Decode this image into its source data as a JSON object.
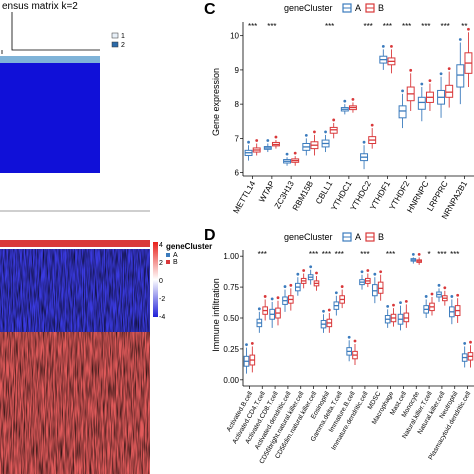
{
  "panel_c": {
    "letter": "C",
    "legend_title": "geneCluster",
    "legend_items": [
      "A",
      "B"
    ],
    "ylabel": "Gene expression",
    "yticks": [
      "6",
      "7",
      "8",
      "9",
      "10"
    ],
    "sig": [
      "***",
      "***",
      "",
      "",
      "***",
      "",
      "***",
      "***",
      "***",
      "***",
      "***",
      "**"
    ]
  },
  "panel_d": {
    "letter": "D",
    "legend_title": "geneCluster",
    "legend_items": [
      "A",
      "B"
    ],
    "ylabel": "Immune infiltration",
    "yticks": [
      "0.00",
      "0.25",
      "0.50",
      "0.75",
      "1.00"
    ],
    "sig": [
      "",
      "***",
      "",
      "",
      "",
      "***",
      "***",
      "***",
      "",
      "***",
      "",
      "***",
      "",
      "",
      "*",
      "***",
      "***",
      ""
    ]
  },
  "panel_top_left": {
    "title_fragment": "ensus matrix k=2",
    "legend_items": [
      "1",
      "2"
    ]
  },
  "panel_heatmap": {
    "scale_ticks": [
      "4",
      "2",
      "0",
      "-2",
      "-4"
    ],
    "legend_title": "geneCluster",
    "legend_items": [
      "A",
      "B"
    ]
  },
  "colors": {
    "cluster_a": "#3b7bbd",
    "cluster_b": "#d9383a",
    "consensus_blue": "#1010d8"
  },
  "chart_data": [
    {
      "type": "box",
      "panel": "C",
      "ylabel": "Gene expression",
      "ylim": [
        5.9,
        10.4
      ],
      "categories": [
        "METTL14",
        "WTAP",
        "ZC3H13",
        "RBM15B",
        "CBLL1",
        "YTHDC1",
        "YTHDC2",
        "YTHDF1",
        "YTHDF2",
        "HNRNPC",
        "LRPPRC",
        "NRNPA2B1"
      ],
      "series": [
        {
          "name": "A",
          "values": [
            [
              6.35,
              6.5,
              6.58,
              6.65,
              6.8
            ],
            [
              6.6,
              6.68,
              6.72,
              6.76,
              6.85
            ],
            [
              6.2,
              6.28,
              6.33,
              6.38,
              6.45
            ],
            [
              6.5,
              6.65,
              6.75,
              6.85,
              7.0
            ],
            [
              6.6,
              6.75,
              6.85,
              6.95,
              7.1
            ],
            [
              7.7,
              7.8,
              7.85,
              7.9,
              8.0
            ],
            [
              6.1,
              6.35,
              6.45,
              6.55,
              6.8
            ],
            [
              9.0,
              9.2,
              9.3,
              9.4,
              9.6
            ],
            [
              7.3,
              7.6,
              7.8,
              7.95,
              8.3
            ],
            [
              7.5,
              7.85,
              8.05,
              8.2,
              8.5
            ],
            [
              7.6,
              8.0,
              8.2,
              8.4,
              8.8
            ],
            [
              8.0,
              8.5,
              8.85,
              9.15,
              9.8
            ]
          ]
        },
        {
          "name": "B",
          "values": [
            [
              6.5,
              6.6,
              6.66,
              6.72,
              6.85
            ],
            [
              6.7,
              6.78,
              6.82,
              6.88,
              6.95
            ],
            [
              6.2,
              6.3,
              6.35,
              6.4,
              6.48
            ],
            [
              6.5,
              6.7,
              6.8,
              6.9,
              7.1
            ],
            [
              7.0,
              7.15,
              7.25,
              7.32,
              7.45
            ],
            [
              7.75,
              7.84,
              7.9,
              7.95,
              8.05
            ],
            [
              6.7,
              6.85,
              6.95,
              7.05,
              7.3
            ],
            [
              8.9,
              9.15,
              9.25,
              9.35,
              9.6
            ],
            [
              7.8,
              8.1,
              8.3,
              8.5,
              8.9
            ],
            [
              7.8,
              8.05,
              8.2,
              8.35,
              8.6
            ],
            [
              7.9,
              8.2,
              8.35,
              8.55,
              8.95
            ],
            [
              8.5,
              8.9,
              9.2,
              9.5,
              10.1
            ]
          ]
        }
      ]
    },
    {
      "type": "box",
      "panel": "D",
      "ylabel": "Immune infiltration",
      "ylim": [
        -0.05,
        1.05
      ],
      "categories": [
        "Activated.B.cell",
        "Activated.CD4.T.cell",
        "Activated.CD8.T.cell",
        "Activated.dendritic.cell",
        "CD56bright.natural.killer.cell",
        "CD56dim.natural.killer.cell",
        "Eosinophil",
        "Gamma.delta.T.cell",
        "Immature.B.cell",
        "Immature.dendritic.cell",
        "MDSC",
        "Macrophage",
        "Mast.cell",
        "Monocyte",
        "Natural.killer.T.cell",
        "Natural.killer.cell",
        "Neutrophil",
        "Plasmacytoid.dendritic.cell"
      ],
      "series": [
        {
          "name": "A",
          "values": [
            [
              0.05,
              0.11,
              0.15,
              0.19,
              0.26
            ],
            [
              0.38,
              0.43,
              0.46,
              0.49,
              0.55
            ],
            [
              0.42,
              0.49,
              0.53,
              0.57,
              0.63
            ],
            [
              0.55,
              0.61,
              0.64,
              0.67,
              0.73
            ],
            [
              0.68,
              0.72,
              0.75,
              0.78,
              0.83
            ],
            [
              0.77,
              0.81,
              0.83,
              0.85,
              0.89
            ],
            [
              0.38,
              0.42,
              0.45,
              0.48,
              0.53
            ],
            [
              0.52,
              0.57,
              0.6,
              0.63,
              0.68
            ],
            [
              0.15,
              0.2,
              0.23,
              0.26,
              0.32
            ],
            [
              0.73,
              0.77,
              0.79,
              0.81,
              0.85
            ],
            [
              0.62,
              0.68,
              0.72,
              0.77,
              0.83
            ],
            [
              0.42,
              0.46,
              0.49,
              0.52,
              0.57
            ],
            [
              0.4,
              0.45,
              0.49,
              0.53,
              0.6
            ],
            [
              0.94,
              0.96,
              0.97,
              0.98,
              0.99
            ],
            [
              0.5,
              0.54,
              0.57,
              0.6,
              0.65
            ],
            [
              0.63,
              0.67,
              0.69,
              0.71,
              0.74
            ],
            [
              0.45,
              0.51,
              0.55,
              0.59,
              0.65
            ],
            [
              0.1,
              0.15,
              0.18,
              0.21,
              0.27
            ]
          ]
        },
        {
          "name": "B",
          "values": [
            [
              0.06,
              0.12,
              0.16,
              0.2,
              0.27
            ],
            [
              0.48,
              0.53,
              0.56,
              0.59,
              0.65
            ],
            [
              0.44,
              0.5,
              0.54,
              0.58,
              0.64
            ],
            [
              0.56,
              0.62,
              0.65,
              0.68,
              0.74
            ],
            [
              0.74,
              0.78,
              0.8,
              0.82,
              0.86
            ],
            [
              0.72,
              0.76,
              0.78,
              0.8,
              0.84
            ],
            [
              0.38,
              0.43,
              0.46,
              0.49,
              0.54
            ],
            [
              0.58,
              0.62,
              0.65,
              0.68,
              0.73
            ],
            [
              0.12,
              0.17,
              0.2,
              0.23,
              0.29
            ],
            [
              0.75,
              0.78,
              0.8,
              0.82,
              0.86
            ],
            [
              0.64,
              0.7,
              0.74,
              0.79,
              0.85
            ],
            [
              0.43,
              0.47,
              0.5,
              0.53,
              0.58
            ],
            [
              0.42,
              0.47,
              0.5,
              0.54,
              0.61
            ],
            [
              0.93,
              0.95,
              0.96,
              0.97,
              0.99
            ],
            [
              0.52,
              0.56,
              0.59,
              0.62,
              0.67
            ],
            [
              0.6,
              0.64,
              0.66,
              0.68,
              0.72
            ],
            [
              0.46,
              0.52,
              0.56,
              0.6,
              0.66
            ],
            [
              0.1,
              0.16,
              0.19,
              0.22,
              0.28
            ]
          ]
        }
      ]
    }
  ]
}
